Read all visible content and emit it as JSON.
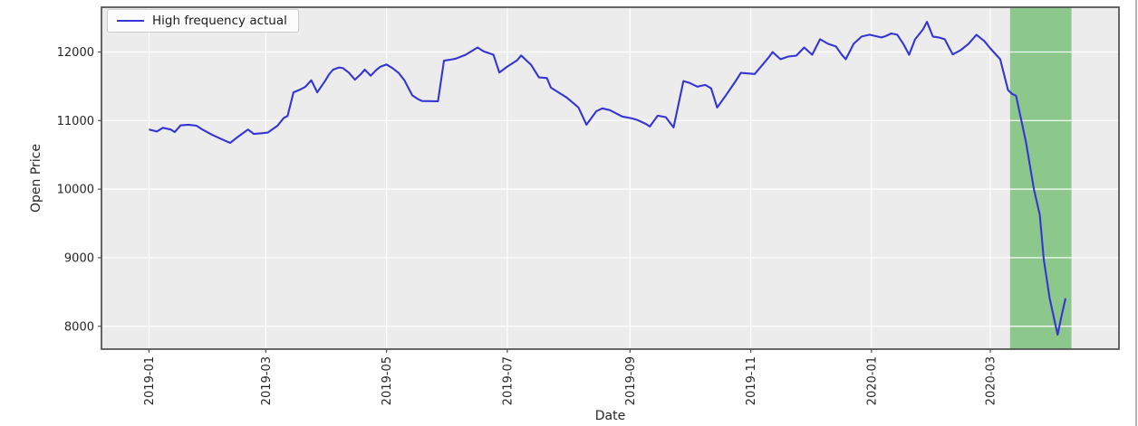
{
  "chart_data": {
    "type": "line",
    "title": "",
    "xlabel": "Date",
    "ylabel": "Open Price",
    "grid": true,
    "plot_bg_color": "#ececec",
    "grid_color": "#ffffff",
    "spine_color": "#4e4e4e",
    "ylim": [
      7667,
      12653
    ],
    "xlim_dates": [
      "2018-12-08",
      "2020-05-05"
    ],
    "y_ticks": [
      8000,
      9000,
      10000,
      11000,
      12000
    ],
    "y_tick_labels": [
      "8000",
      "9000",
      "10000",
      "11000",
      "12000"
    ],
    "x_ticks": [
      {
        "date": "2019-01-01",
        "label": "2019-01"
      },
      {
        "date": "2019-03-01",
        "label": "2019-03"
      },
      {
        "date": "2019-05-01",
        "label": "2019-05"
      },
      {
        "date": "2019-07-01",
        "label": "2019-07"
      },
      {
        "date": "2019-09-01",
        "label": "2019-09"
      },
      {
        "date": "2019-11-01",
        "label": "2019-11"
      },
      {
        "date": "2020-01-01",
        "label": "2020-01"
      },
      {
        "date": "2020-03-01",
        "label": "2020-03"
      }
    ],
    "legend_position": "upper left",
    "highlight_region": {
      "start": "2020-03-11",
      "end": "2020-04-11",
      "color": "#8cc88c"
    },
    "series": [
      {
        "name": "High frequency actual",
        "color": "#3535d6",
        "points": [
          [
            "2019-01-01",
            10870
          ],
          [
            "2019-01-05",
            10840
          ],
          [
            "2019-01-08",
            10895
          ],
          [
            "2019-01-12",
            10870
          ],
          [
            "2019-01-14",
            10833
          ],
          [
            "2019-01-17",
            10930
          ],
          [
            "2019-01-21",
            10940
          ],
          [
            "2019-01-25",
            10925
          ],
          [
            "2019-01-28",
            10870
          ],
          [
            "2019-02-02",
            10790
          ],
          [
            "2019-02-07",
            10725
          ],
          [
            "2019-02-11",
            10675
          ],
          [
            "2019-02-15",
            10765
          ],
          [
            "2019-02-20",
            10870
          ],
          [
            "2019-02-23",
            10805
          ],
          [
            "2019-02-27",
            10815
          ],
          [
            "2019-03-02",
            10825
          ],
          [
            "2019-03-07",
            10926
          ],
          [
            "2019-03-10",
            11036
          ],
          [
            "2019-03-12",
            11068
          ],
          [
            "2019-03-15",
            11412
          ],
          [
            "2019-03-18",
            11447
          ],
          [
            "2019-03-21",
            11492
          ],
          [
            "2019-03-24",
            11589
          ],
          [
            "2019-03-27",
            11412
          ],
          [
            "2019-03-31",
            11580
          ],
          [
            "2019-04-02",
            11677
          ],
          [
            "2019-04-04",
            11743
          ],
          [
            "2019-04-07",
            11774
          ],
          [
            "2019-04-09",
            11765
          ],
          [
            "2019-04-12",
            11698
          ],
          [
            "2019-04-15",
            11597
          ],
          [
            "2019-04-18",
            11677
          ],
          [
            "2019-04-20",
            11743
          ],
          [
            "2019-04-23",
            11655
          ],
          [
            "2019-04-26",
            11743
          ],
          [
            "2019-04-28",
            11788
          ],
          [
            "2019-05-01",
            11818
          ],
          [
            "2019-05-04",
            11765
          ],
          [
            "2019-05-07",
            11698
          ],
          [
            "2019-05-10",
            11589
          ],
          [
            "2019-05-12",
            11479
          ],
          [
            "2019-05-14",
            11368
          ],
          [
            "2019-05-17",
            11310
          ],
          [
            "2019-05-19",
            11285
          ],
          [
            "2019-05-27",
            11281
          ],
          [
            "2019-05-30",
            11873
          ],
          [
            "2019-06-02",
            11887
          ],
          [
            "2019-06-05",
            11904
          ],
          [
            "2019-06-10",
            11961
          ],
          [
            "2019-06-16",
            12066
          ],
          [
            "2019-06-19",
            12009
          ],
          [
            "2019-06-24",
            11961
          ],
          [
            "2019-06-27",
            11700
          ],
          [
            "2019-07-01",
            11788
          ],
          [
            "2019-07-06",
            11880
          ],
          [
            "2019-07-08",
            11950
          ],
          [
            "2019-07-13",
            11814
          ],
          [
            "2019-07-17",
            11630
          ],
          [
            "2019-07-21",
            11620
          ],
          [
            "2019-07-23",
            11480
          ],
          [
            "2019-07-28",
            11390
          ],
          [
            "2019-07-31",
            11337
          ],
          [
            "2019-08-06",
            11190
          ],
          [
            "2019-08-10",
            10940
          ],
          [
            "2019-08-15",
            11138
          ],
          [
            "2019-08-18",
            11178
          ],
          [
            "2019-08-22",
            11150
          ],
          [
            "2019-08-28",
            11060
          ],
          [
            "2019-09-02",
            11032
          ],
          [
            "2019-09-05",
            11005
          ],
          [
            "2019-09-09",
            10952
          ],
          [
            "2019-09-11",
            10913
          ],
          [
            "2019-09-15",
            11072
          ],
          [
            "2019-09-19",
            11050
          ],
          [
            "2019-09-23",
            10900
          ],
          [
            "2019-09-28",
            11576
          ],
          [
            "2019-10-01",
            11550
          ],
          [
            "2019-10-05",
            11495
          ],
          [
            "2019-10-09",
            11520
          ],
          [
            "2019-10-12",
            11470
          ],
          [
            "2019-10-15",
            11190
          ],
          [
            "2019-10-19",
            11350
          ],
          [
            "2019-10-24",
            11560
          ],
          [
            "2019-10-27",
            11695
          ],
          [
            "2019-11-03",
            11680
          ],
          [
            "2019-11-10",
            11920
          ],
          [
            "2019-11-12",
            12000
          ],
          [
            "2019-11-16",
            11894
          ],
          [
            "2019-11-20",
            11934
          ],
          [
            "2019-11-24",
            11947
          ],
          [
            "2019-11-28",
            12066
          ],
          [
            "2019-12-02",
            11960
          ],
          [
            "2019-12-06",
            12186
          ],
          [
            "2019-12-10",
            12120
          ],
          [
            "2019-12-14",
            12080
          ],
          [
            "2019-12-17",
            11960
          ],
          [
            "2019-12-19",
            11894
          ],
          [
            "2019-12-23",
            12120
          ],
          [
            "2019-12-27",
            12225
          ],
          [
            "2019-12-31",
            12252
          ],
          [
            "2020-01-06",
            12212
          ],
          [
            "2020-01-08",
            12230
          ],
          [
            "2020-01-11",
            12270
          ],
          [
            "2020-01-14",
            12252
          ],
          [
            "2020-01-17",
            12120
          ],
          [
            "2020-01-20",
            11960
          ],
          [
            "2020-01-23",
            12186
          ],
          [
            "2020-01-27",
            12330
          ],
          [
            "2020-01-29",
            12440
          ],
          [
            "2020-02-01",
            12225
          ],
          [
            "2020-02-04",
            12212
          ],
          [
            "2020-02-07",
            12186
          ],
          [
            "2020-02-11",
            11965
          ],
          [
            "2020-02-15",
            12027
          ],
          [
            "2020-02-19",
            12120
          ],
          [
            "2020-02-23",
            12252
          ],
          [
            "2020-02-27",
            12160
          ],
          [
            "2020-03-01",
            12053
          ],
          [
            "2020-03-06",
            11894
          ],
          [
            "2020-03-10",
            11443
          ],
          [
            "2020-03-12",
            11390
          ],
          [
            "2020-03-14",
            11363
          ],
          [
            "2020-03-19",
            10690
          ],
          [
            "2020-03-23",
            10000
          ],
          [
            "2020-03-26",
            9626
          ],
          [
            "2020-03-28",
            8977
          ],
          [
            "2020-03-31",
            8407
          ],
          [
            "2020-04-04",
            7878
          ],
          [
            "2020-04-06",
            8150
          ],
          [
            "2020-04-08",
            8407
          ]
        ]
      }
    ]
  }
}
